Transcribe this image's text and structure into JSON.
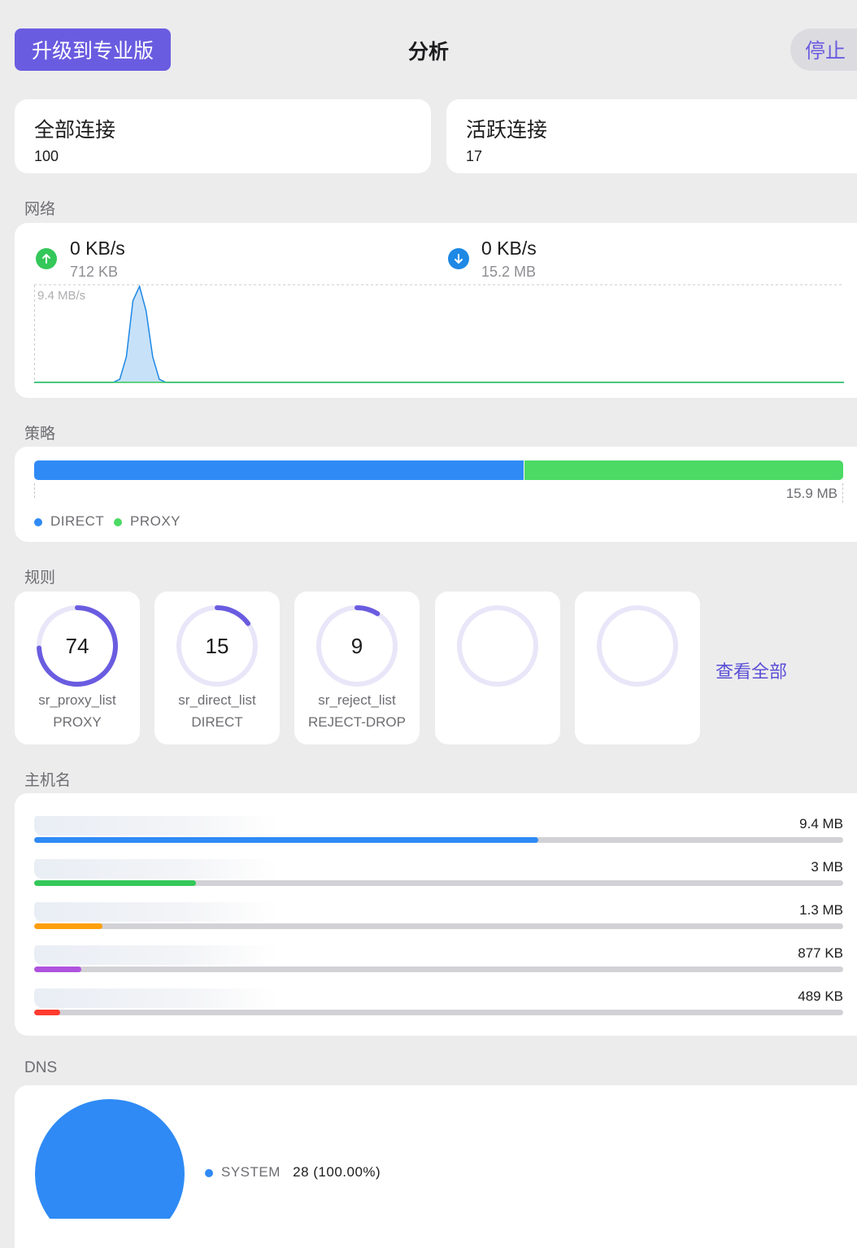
{
  "header": {
    "upgrade_label": "升级到专业版",
    "title": "分析",
    "stop_label": "停止"
  },
  "stats": {
    "all_connections": {
      "label": "全部连接",
      "value": "100"
    },
    "active_connections": {
      "label": "活跃连接",
      "value": "17"
    }
  },
  "network": {
    "section_label": "网络",
    "upload": {
      "speed": "0 KB/s",
      "total": "712 KB",
      "icon": "arrow-up-icon",
      "color": "#34c759"
    },
    "download": {
      "speed": "0 KB/s",
      "total": "15.2 MB",
      "icon": "arrow-down-icon",
      "color": "#1e88e5"
    }
  },
  "chart_data": {
    "type": "area",
    "ymax_label": "9.4 MB/s",
    "ylim": [
      0,
      9.4
    ],
    "series": [
      {
        "color": "#1e88e5",
        "values": [
          0,
          0,
          0,
          0,
          0,
          0,
          0,
          0,
          0,
          0,
          0,
          0,
          0,
          0.3,
          2.5,
          8.0,
          9.4,
          7.0,
          2.5,
          0.3,
          0,
          0,
          0,
          0,
          0,
          0,
          0,
          0,
          0,
          0,
          0,
          0,
          0,
          0,
          0,
          0,
          0,
          0,
          0,
          0,
          0,
          0,
          0,
          0,
          0,
          0,
          0,
          0,
          0,
          0,
          0,
          0,
          0,
          0,
          0,
          0,
          0,
          0,
          0,
          0,
          0,
          0,
          0,
          0,
          0,
          0,
          0,
          0,
          0,
          0,
          0,
          0,
          0,
          0,
          0,
          0,
          0,
          0,
          0,
          0,
          0,
          0,
          0,
          0,
          0,
          0,
          0,
          0,
          0,
          0,
          0,
          0,
          0,
          0,
          0,
          0,
          0,
          0,
          0,
          0,
          0,
          0,
          0,
          0,
          0,
          0,
          0,
          0,
          0,
          0,
          0,
          0,
          0,
          0,
          0,
          0,
          0,
          0,
          0,
          0,
          0,
          0,
          0,
          0
        ]
      },
      {
        "color": "#34c759",
        "values": [
          0,
          0,
          0,
          0,
          0,
          0,
          0,
          0,
          0,
          0,
          0,
          0,
          0,
          0,
          0,
          0,
          0,
          0,
          0,
          0,
          0,
          0,
          0,
          0,
          0,
          0,
          0,
          0,
          0,
          0,
          0,
          0,
          0,
          0,
          0,
          0,
          0,
          0,
          0,
          0,
          0,
          0,
          0,
          0,
          0,
          0,
          0,
          0,
          0,
          0,
          0,
          0,
          0,
          0,
          0,
          0,
          0,
          0,
          0,
          0,
          0,
          0,
          0,
          0,
          0,
          0,
          0,
          0,
          0,
          0,
          0,
          0,
          0,
          0,
          0,
          0,
          0,
          0,
          0,
          0,
          0,
          0,
          0,
          0,
          0,
          0,
          0,
          0,
          0,
          0,
          0,
          0,
          0,
          0,
          0,
          0,
          0,
          0,
          0,
          0,
          0,
          0,
          0,
          0,
          0,
          0,
          0,
          0,
          0,
          0,
          0,
          0,
          0,
          0,
          0,
          0,
          0,
          0,
          0,
          0,
          0,
          0,
          0,
          0,
          0
        ]
      }
    ]
  },
  "policy": {
    "section_label": "策略",
    "total": "15.9 MB",
    "segments": [
      {
        "name": "DIRECT",
        "fraction": 0.605,
        "color": "#2f8af5"
      },
      {
        "name": "PROXY",
        "fraction": 0.395,
        "color": "#4cd964"
      }
    ]
  },
  "rules": {
    "section_label": "规则",
    "view_all_label": "查看全部",
    "ring_color": "#6a5ce0",
    "ring_track_color": "#e8e6f8",
    "items": [
      {
        "count": "74",
        "name": "sr_proxy_list",
        "policy": "PROXY",
        "fraction": 0.74
      },
      {
        "count": "15",
        "name": "sr_direct_list",
        "policy": "DIRECT",
        "fraction": 0.15
      },
      {
        "count": "9",
        "name": "sr_reject_list",
        "policy": "REJECT-DROP",
        "fraction": 0.09
      },
      {
        "count": "",
        "name": "",
        "policy": "",
        "fraction": 0
      },
      {
        "count": "",
        "name": "",
        "policy": "",
        "fraction": 0
      }
    ]
  },
  "hosts": {
    "section_label": "主机名",
    "items": [
      {
        "name": "",
        "value": "9.4 MB",
        "fraction": 0.623,
        "color": "#2f8af5"
      },
      {
        "name": "",
        "value": "3 MB",
        "fraction": 0.2,
        "color": "#34c759"
      },
      {
        "name": "",
        "value": "1.3 MB",
        "fraction": 0.084,
        "color": "#ff9f0a"
      },
      {
        "name": "",
        "value": "877 KB",
        "fraction": 0.058,
        "color": "#af52de"
      },
      {
        "name": "",
        "value": "489 KB",
        "fraction": 0.032,
        "color": "#ff3b30"
      }
    ]
  },
  "dns": {
    "section_label": "DNS",
    "color": "#2f8af5",
    "items": [
      {
        "name": "SYSTEM",
        "value": "28 (100.00%)",
        "fraction": 1.0
      }
    ]
  }
}
